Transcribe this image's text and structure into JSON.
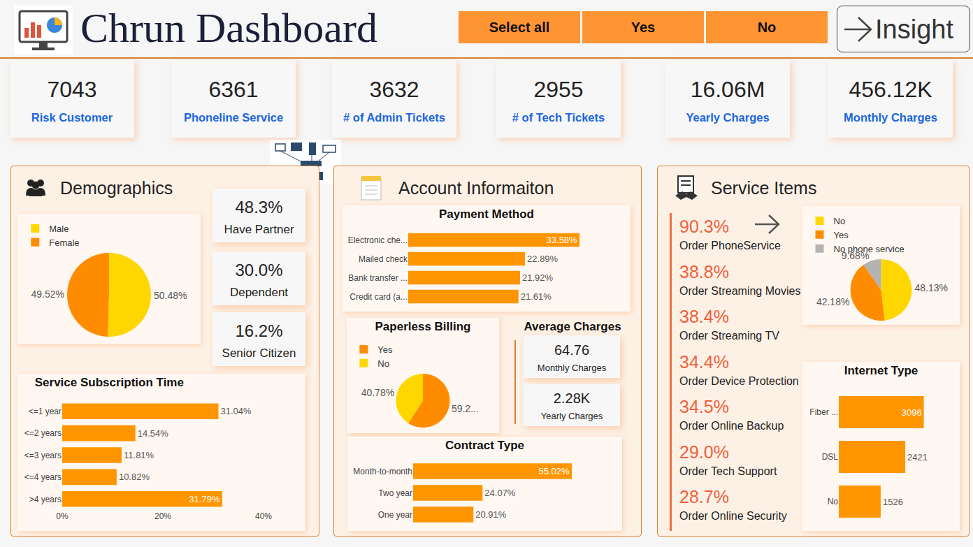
{
  "header": {
    "title": "Chrun Dashboard",
    "filters": [
      "Select all",
      "Yes",
      "No"
    ],
    "button": "Insight"
  },
  "kpis": [
    {
      "value": "7043",
      "label": "Risk Customer"
    },
    {
      "value": "6361",
      "label": "Phoneline Service"
    },
    {
      "value": "3632",
      "label": "# of Admin Tickets"
    },
    {
      "value": "2955",
      "label": "# of Tech Tickets"
    },
    {
      "value": "16.06M",
      "label": "Yearly Charges"
    },
    {
      "value": "456.12K",
      "label": "Monthly Charges"
    }
  ],
  "panels": {
    "demographics": {
      "title": "Demographics",
      "stats": [
        {
          "value": "48.3%",
          "label": "Have Partner"
        },
        {
          "value": "30.0%",
          "label": "Dependent"
        },
        {
          "value": "16.2%",
          "label": "Senior Citizen"
        }
      ]
    },
    "account": {
      "title": "Account Informaiton",
      "average_charges": {
        "title": "Average Charges",
        "items": [
          {
            "value": "64.76",
            "label": "Monthly Charges"
          },
          {
            "value": "2.28K",
            "label": "Yearly Charges"
          }
        ]
      }
    },
    "service": {
      "title": "Service Items",
      "items": [
        {
          "value": "90.3%",
          "label": "Order PhoneService"
        },
        {
          "value": "38.8%",
          "label": "Order Streaming Movies"
        },
        {
          "value": "38.4%",
          "label": "Order Streaming TV"
        },
        {
          "value": "34.4%",
          "label": "Order Device Protection"
        },
        {
          "value": "34.5%",
          "label": "Order Online Backup"
        },
        {
          "value": "29.0%",
          "label": "Order Tech Support"
        },
        {
          "value": "28.7%",
          "label": "Order Online Security"
        }
      ]
    }
  },
  "chart_data": [
    {
      "type": "pie",
      "categories": [
        "Male",
        "Female"
      ],
      "values": [
        50.48,
        49.52
      ],
      "value_labels": [
        "50.48%",
        "49.52%"
      ],
      "colors": [
        "#FFD700",
        "#FF8C00"
      ],
      "data_labels": true,
      "legend": "top left"
    },
    {
      "type": "bar",
      "title": "Service Subscription Time",
      "orientation": "horizontal",
      "categories": [
        "<=1 year",
        "<=2 years",
        "<=3 years",
        "<=4 years",
        ">4 years"
      ],
      "values": [
        31.04,
        14.54,
        11.81,
        10.82,
        31.79
      ],
      "value_labels": [
        "31.04%",
        "14.54%",
        "11.81%",
        "10.82%",
        "31.79%"
      ],
      "color": "#FF9500",
      "xlim": [
        0,
        40
      ],
      "xticks": [
        {
          "value": 0,
          "label": "0%"
        },
        {
          "value": 20,
          "label": "20%"
        },
        {
          "value": 40,
          "label": "40%"
        }
      ],
      "grid": false,
      "data_labels": true
    },
    {
      "type": "bar",
      "title": "Payment Method",
      "orientation": "horizontal",
      "categories": [
        "Electronic che...",
        "Mailed check",
        "Bank transfer ...",
        "Credit card (a..."
      ],
      "values": [
        33.58,
        22.89,
        21.92,
        21.61
      ],
      "value_labels": [
        "33.58%",
        "22.89%",
        "21.92%",
        "21.61%"
      ],
      "color": "#FF9500",
      "grid": false,
      "data_labels": true,
      "tick_labels": "y"
    },
    {
      "type": "pie",
      "title": "Paperless Billing",
      "categories": [
        "Yes",
        "No"
      ],
      "values": [
        59.22,
        40.78
      ],
      "value_labels": [
        "59.2...",
        "40.78%"
      ],
      "colors": [
        "#FF8C00",
        "#FFD700"
      ],
      "data_labels": true,
      "legend": "top left"
    },
    {
      "type": "bar",
      "title": "Contract Type",
      "orientation": "horizontal",
      "categories": [
        "Month-to-month",
        "Two year",
        "One year"
      ],
      "values": [
        55.02,
        24.07,
        20.91
      ],
      "value_labels": [
        "55.02%",
        "24.07%",
        "20.91%"
      ],
      "color": "#FF9500",
      "grid": false,
      "data_labels": true,
      "tick_labels": "y"
    },
    {
      "type": "pie",
      "categories": [
        "No",
        "Yes",
        "No phone service"
      ],
      "values": [
        48.13,
        42.18,
        9.68
      ],
      "value_labels": [
        "48.13%",
        "42.18%",
        "9.68%"
      ],
      "colors": [
        "#FFD700",
        "#FF8C00",
        "#B3B3B3"
      ],
      "data_labels": true,
      "legend": "top left"
    },
    {
      "type": "bar",
      "title": "Internet Type",
      "orientation": "horizontal",
      "categories": [
        "Fiber ...",
        "DSL",
        "No"
      ],
      "values": [
        3096,
        2421,
        1526
      ],
      "color": "#FF9500",
      "grid": false,
      "data_labels": true,
      "tick_labels": "y"
    }
  ]
}
